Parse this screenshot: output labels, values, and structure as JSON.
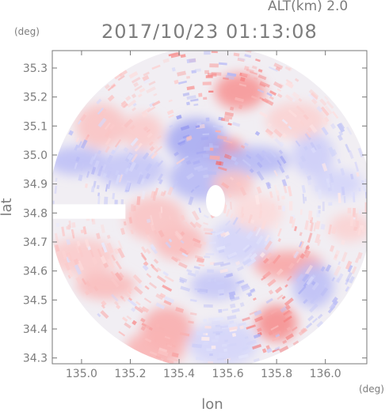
{
  "header": {
    "altitude": "ALT(km) 2.0",
    "timestamp": "2017/10/23 01:13:08"
  },
  "colors": {
    "positive": "#f36b6b",
    "negative": "#6f74ea",
    "neutral": "#ffffff",
    "axis": "#777777",
    "text": "#7d7d7d"
  },
  "chart_data": {
    "type": "heatmap",
    "title": "2017/10/23 01:13:08",
    "subtitle": "ALT(km) 2.0",
    "xlabel": "lon",
    "ylabel": "lat",
    "x_unit": "(deg)",
    "y_unit": "(deg)",
    "xlim": [
      134.88,
      136.17
    ],
    "ylim": [
      34.28,
      35.36
    ],
    "x_ticks": [
      135.0,
      135.2,
      135.4,
      135.6,
      135.8,
      136.0
    ],
    "x_tick_labels": [
      "135.0",
      "135.2",
      "135.4",
      "135.6",
      "135.8",
      "136.0"
    ],
    "y_ticks": [
      34.3,
      34.4,
      34.5,
      34.6,
      34.7,
      34.8,
      34.9,
      35.0,
      35.1,
      35.2,
      35.3
    ],
    "y_tick_labels": [
      "34.3",
      "34.4",
      "34.5",
      "34.6",
      "34.7",
      "34.8",
      "34.9",
      "35.0",
      "35.1",
      "35.2",
      "35.3"
    ],
    "radar_center": [
      135.53,
      34.82
    ],
    "radar_range_lon": [
      134.88,
      136.17
    ],
    "radar_range_lat": [
      34.28,
      35.36
    ],
    "blank_gap": {
      "lon": [
        134.88,
        135.18
      ],
      "lat": [
        34.78,
        34.83
      ]
    },
    "value_scale": [
      -1,
      1
    ],
    "features": [
      {
        "lon": 135.59,
        "lat": 35.01,
        "value": 0.8
      },
      {
        "lon": 135.65,
        "lat": 35.22,
        "value": 0.7
      },
      {
        "lon": 135.47,
        "lat": 35.05,
        "value": -0.6
      },
      {
        "lon": 135.71,
        "lat": 34.98,
        "value": -0.5
      },
      {
        "lon": 135.25,
        "lat": 35.08,
        "value": 0.35
      },
      {
        "lon": 135.08,
        "lat": 35.1,
        "value": 0.4
      },
      {
        "lon": 134.98,
        "lat": 34.98,
        "value": -0.45
      },
      {
        "lon": 135.2,
        "lat": 34.95,
        "value": -0.4
      },
      {
        "lon": 135.95,
        "lat": 35.0,
        "value": -0.35
      },
      {
        "lon": 136.05,
        "lat": 34.9,
        "value": -0.3
      },
      {
        "lon": 135.88,
        "lat": 35.12,
        "value": 0.3
      },
      {
        "lon": 135.5,
        "lat": 34.92,
        "value": -0.5
      },
      {
        "lon": 135.62,
        "lat": 34.9,
        "value": 0.4
      },
      {
        "lon": 135.4,
        "lat": 34.7,
        "value": 0.45
      },
      {
        "lon": 135.65,
        "lat": 34.7,
        "value": -0.3
      },
      {
        "lon": 135.85,
        "lat": 34.62,
        "value": 0.6
      },
      {
        "lon": 135.8,
        "lat": 34.42,
        "value": 0.75
      },
      {
        "lon": 135.35,
        "lat": 34.4,
        "value": 0.55
      },
      {
        "lon": 135.1,
        "lat": 34.55,
        "value": 0.45
      },
      {
        "lon": 135.0,
        "lat": 34.65,
        "value": 0.35
      },
      {
        "lon": 135.95,
        "lat": 34.55,
        "value": -0.45
      },
      {
        "lon": 135.55,
        "lat": 34.55,
        "value": -0.4
      },
      {
        "lon": 135.3,
        "lat": 34.33,
        "value": 0.5
      },
      {
        "lon": 135.58,
        "lat": 34.35,
        "value": -0.3
      },
      {
        "lon": 136.1,
        "lat": 34.75,
        "value": 0.3
      },
      {
        "lon": 135.72,
        "lat": 34.8,
        "value": 0.25
      },
      {
        "lon": 135.3,
        "lat": 34.78,
        "value": 0.4
      }
    ]
  }
}
